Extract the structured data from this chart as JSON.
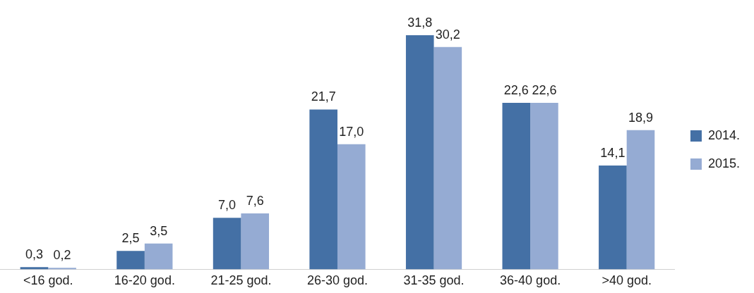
{
  "chart_data": {
    "type": "bar",
    "categories": [
      "<16 god.",
      "16-20 god.",
      "21-25 god.",
      "26-30 god.",
      "31-35 god.",
      "36-40 god.",
      ">40 god."
    ],
    "series": [
      {
        "name": "2014.",
        "color": "#4470a5",
        "values": [
          0.3,
          2.5,
          7.0,
          21.7,
          31.8,
          22.6,
          14.1
        ],
        "value_labels": [
          "0,3",
          "2,5",
          "7,0",
          "21,7",
          "31,8",
          "22,6",
          "14,1"
        ]
      },
      {
        "name": "2015.",
        "color": "#95abd3",
        "values": [
          0.2,
          3.5,
          7.6,
          17.0,
          30.2,
          22.6,
          18.9
        ],
        "value_labels": [
          "0,2",
          "3,5",
          "7,6",
          "17,0",
          "30,2",
          "22,6",
          "18,9"
        ]
      }
    ],
    "legend": "right",
    "grid": false
  }
}
